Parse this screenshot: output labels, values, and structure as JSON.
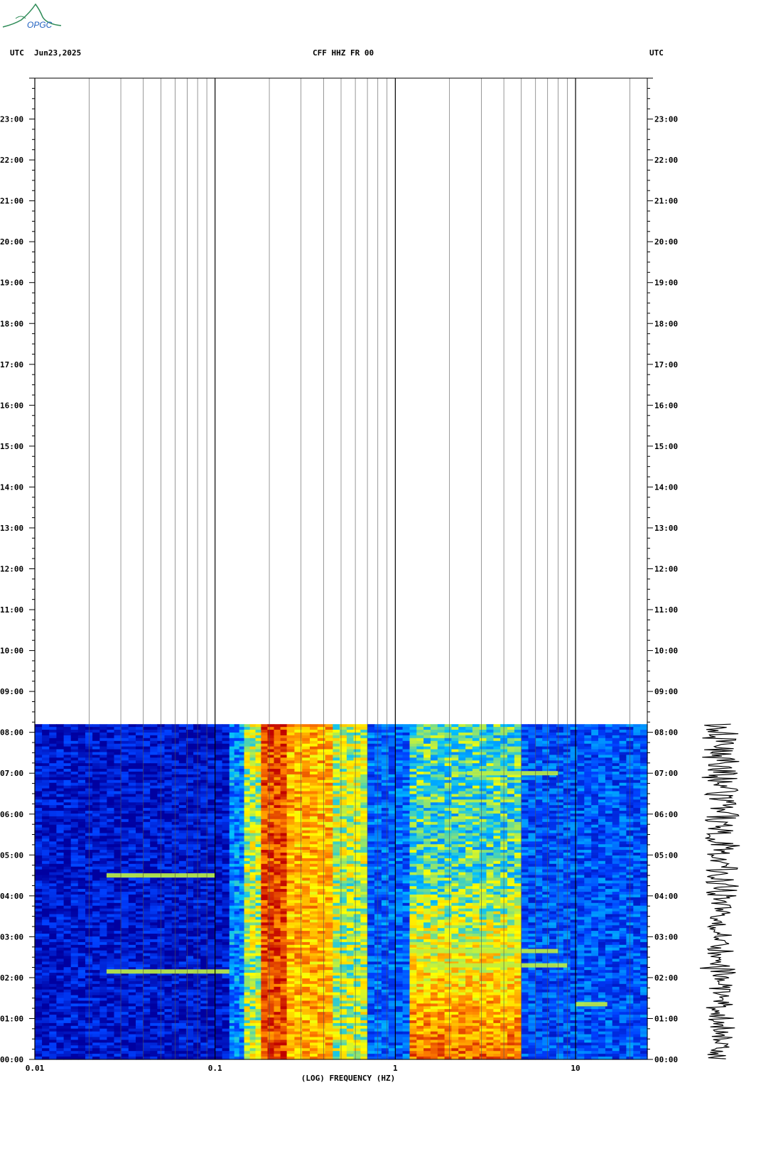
{
  "header": {
    "left_tz": "UTC",
    "date": "Jun23,2025",
    "station": "CFF HHZ FR 00",
    "right_tz": "UTC"
  },
  "logo": {
    "text": "OPGC",
    "color": "#2e8b57"
  },
  "chart_data": {
    "type": "heatmap",
    "title": "CFF HHZ FR 00",
    "xlabel": "(LOG) FREQUENCY (HZ)",
    "xscale": "log",
    "xlim": [
      0.01,
      25
    ],
    "x_ticks": [
      "0.01",
      "0.1",
      "1",
      "10"
    ],
    "ylim_hours": [
      0,
      24
    ],
    "y_ticks": [
      "00:00",
      "01:00",
      "02:00",
      "03:00",
      "04:00",
      "05:00",
      "06:00",
      "07:00",
      "08:00",
      "09:00",
      "10:00",
      "11:00",
      "12:00",
      "13:00",
      "14:00",
      "15:00",
      "16:00",
      "17:00",
      "18:00",
      "19:00",
      "20:00",
      "21:00",
      "22:00",
      "23:00"
    ],
    "data_end_hour": 8.2,
    "colormap": [
      "#0000a0",
      "#0040ff",
      "#00c0ff",
      "#ffff00",
      "#ff8000",
      "#c00000"
    ],
    "grid": true,
    "bands": [
      {
        "f_min": 0.01,
        "f_max": 0.12,
        "level": 0.08
      },
      {
        "f_min": 0.12,
        "f_max": 0.145,
        "level": 0.3
      },
      {
        "f_min": 0.145,
        "f_max": 0.18,
        "level": 0.55
      },
      {
        "f_min": 0.18,
        "f_max": 0.25,
        "level": 0.88
      },
      {
        "f_min": 0.25,
        "f_max": 0.45,
        "level": 0.72
      },
      {
        "f_min": 0.45,
        "f_max": 0.7,
        "level": 0.55
      },
      {
        "f_min": 0.7,
        "f_max": 1.2,
        "level": 0.25
      },
      {
        "f_min": 1.2,
        "f_max": 5,
        "level": 0.45
      },
      {
        "f_min": 5,
        "f_max": 25,
        "level": 0.22
      }
    ],
    "events": [
      {
        "time_hour": 2.15,
        "f_min": 0.025,
        "f_max": 0.12
      },
      {
        "time_hour": 4.5,
        "f_min": 0.025,
        "f_max": 0.1
      },
      {
        "time_hour": 2.3,
        "f_min": 1.5,
        "f_max": 9
      },
      {
        "time_hour": 2.65,
        "f_min": 1.2,
        "f_max": 8
      },
      {
        "time_hour": 7.0,
        "f_min": 2.5,
        "f_max": 8
      },
      {
        "time_hour": 1.35,
        "f_min": 10,
        "f_max": 15
      }
    ]
  }
}
